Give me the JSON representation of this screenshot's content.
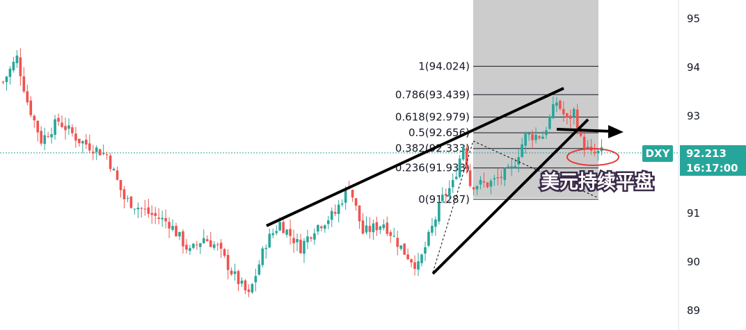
{
  "chart_data": {
    "type": "candlestick",
    "symbol": "DXY",
    "last_price": "92.213",
    "time": "16:17:00",
    "ylim": [
      88.9,
      95.4
    ],
    "y_ticks": [
      "95",
      "94",
      "93",
      "92",
      "91",
      "90",
      "89"
    ],
    "colors": {
      "up": "#26a69a",
      "down": "#ef5350",
      "badge": "#26a69a",
      "bg": "#ffffff",
      "fib_zone": "#cccccc"
    },
    "fibonacci": [
      {
        "label": "1(94.024)",
        "price": 94.024
      },
      {
        "label": "0.786(93.439)",
        "price": 93.439
      },
      {
        "label": "0.618(92.979)",
        "price": 92.979
      },
      {
        "label": "0.5(92.656)",
        "price": 92.656
      },
      {
        "label": "0.382(92.333)",
        "price": 92.333
      },
      {
        "label": "0.236(91.933)",
        "price": 91.933
      },
      {
        "label": "0(91.287)",
        "price": 91.287
      }
    ],
    "annotation": "美元持续平盘",
    "anchors": [
      [
        0,
        93.7
      ],
      [
        4,
        94.2
      ],
      [
        7,
        93.3
      ],
      [
        11,
        92.5
      ],
      [
        16,
        92.9
      ],
      [
        22,
        92.5
      ],
      [
        30,
        92.2
      ],
      [
        35,
        91.3
      ],
      [
        42,
        91.0
      ],
      [
        48,
        90.8
      ],
      [
        54,
        90.2
      ],
      [
        58,
        90.5
      ],
      [
        62,
        90.3
      ],
      [
        66,
        89.8
      ],
      [
        71,
        89.3
      ],
      [
        76,
        90.4
      ],
      [
        80,
        90.8
      ],
      [
        86,
        90.3
      ],
      [
        90,
        90.7
      ],
      [
        96,
        91.0
      ],
      [
        100,
        91.6
      ],
      [
        104,
        90.6
      ],
      [
        110,
        90.8
      ],
      [
        116,
        90.2
      ],
      [
        120,
        89.9
      ],
      [
        124,
        90.7
      ],
      [
        127,
        91.3
      ],
      [
        130,
        91.6
      ],
      [
        133,
        92.4
      ],
      [
        135,
        91.6
      ],
      [
        140,
        91.6
      ],
      [
        143,
        91.7
      ],
      [
        147,
        91.9
      ],
      [
        151,
        92.6
      ],
      [
        156,
        92.6
      ],
      [
        160,
        93.3
      ],
      [
        163,
        92.9
      ],
      [
        165,
        93.1
      ],
      [
        167,
        92.5
      ],
      [
        170,
        92.2
      ],
      [
        173,
        92.25
      ]
    ],
    "candle_count": 174
  }
}
